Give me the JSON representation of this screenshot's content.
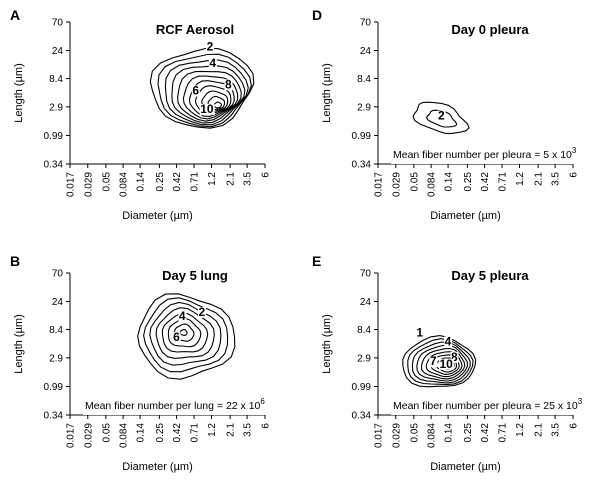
{
  "figure": {
    "x_axis_label": "Diameter (µm)",
    "y_axis_label": "Length (µm)",
    "x_ticks": [
      "0.017",
      "0.029",
      "0.05",
      "0.084",
      "0.14",
      "0.25",
      "0.42",
      "0.71",
      "1.2",
      "2.1",
      "3.5",
      "6"
    ],
    "y_ticks": [
      "70",
      "24",
      "8.4",
      "2.9",
      "0.99",
      "0.34"
    ]
  },
  "chart_data": [
    {
      "type": "contour",
      "panel": "A",
      "title": "RCF Aerosol",
      "annotation": "",
      "contour_labels": [
        {
          "text": "2",
          "x": 1.15,
          "y": 24
        },
        {
          "text": "4",
          "x": 1.25,
          "y": 13
        },
        {
          "text": "6",
          "x": 0.75,
          "y": 4.6
        },
        {
          "text": "8",
          "x": 2.0,
          "y": 5.8
        },
        {
          "text": "10",
          "x": 0.95,
          "y": 2.3
        }
      ],
      "peak": {
        "diameter": 1.4,
        "length": 3.2
      }
    },
    {
      "type": "contour",
      "panel": "B",
      "title": "Day 5 lung",
      "annotation": {
        "base": "Mean fiber number per lung = 22 x 10",
        "exp": "6"
      },
      "contour_labels": [
        {
          "text": "2",
          "x": 0.9,
          "y": 14
        },
        {
          "text": "4",
          "x": 0.5,
          "y": 12
        },
        {
          "text": "6",
          "x": 0.42,
          "y": 5.5
        }
      ],
      "peak": {
        "diameter": 0.5,
        "length": 8.4
      }
    },
    {
      "type": "contour",
      "panel": "D",
      "title": "Day 0 pleura",
      "annotation": {
        "base": "Mean fiber number per pleura = 5 x 10",
        "exp": "3"
      },
      "contour_labels": [
        {
          "text": "2",
          "x": 0.115,
          "y": 1.8
        }
      ],
      "peak": {
        "diameter": 0.12,
        "length": 1.8
      }
    },
    {
      "type": "contour",
      "panel": "E",
      "title": "Day 5 pleura",
      "annotation": {
        "base": "Mean fiber number per pleura = 25 x 10",
        "exp": "3"
      },
      "contour_labels": [
        {
          "text": "1",
          "x": 0.06,
          "y": 6.5
        },
        {
          "text": "4",
          "x": 0.14,
          "y": 4.6
        },
        {
          "text": "7",
          "x": 0.09,
          "y": 2.2
        },
        {
          "text": "8",
          "x": 0.17,
          "y": 2.6
        },
        {
          "text": "10",
          "x": 0.12,
          "y": 2.0
        }
      ],
      "peak": {
        "diameter": 0.14,
        "length": 2.2
      }
    }
  ]
}
